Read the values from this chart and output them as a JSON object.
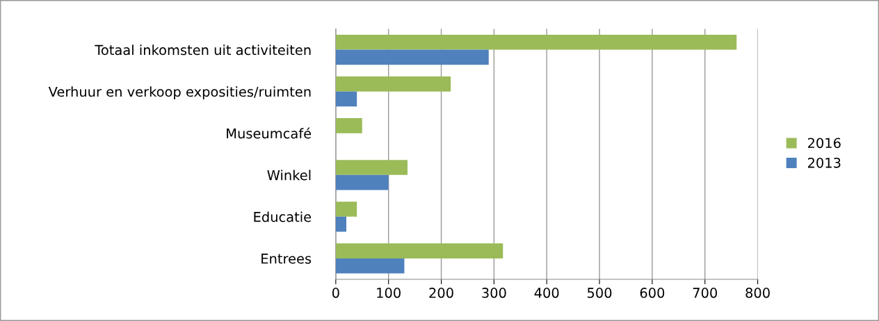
{
  "chart_data": {
    "type": "bar",
    "orientation": "horizontal",
    "categories": [
      "Totaal inkomsten uit activiteiten",
      "Verhuur en verkoop exposities/ruimten",
      "Museumcafé",
      "Winkel",
      "Educatie",
      "Entrees"
    ],
    "series": [
      {
        "name": "2016",
        "color": "#9bbb59",
        "values": [
          760,
          218,
          50,
          136,
          40,
          317
        ]
      },
      {
        "name": "2013",
        "color": "#4f81bd",
        "values": [
          290,
          40,
          null,
          100,
          20,
          130
        ]
      }
    ],
    "xlim": [
      0,
      800
    ],
    "xticks": [
      0,
      100,
      200,
      300,
      400,
      500,
      600,
      700,
      800
    ],
    "grid": "x",
    "legend": "right"
  }
}
